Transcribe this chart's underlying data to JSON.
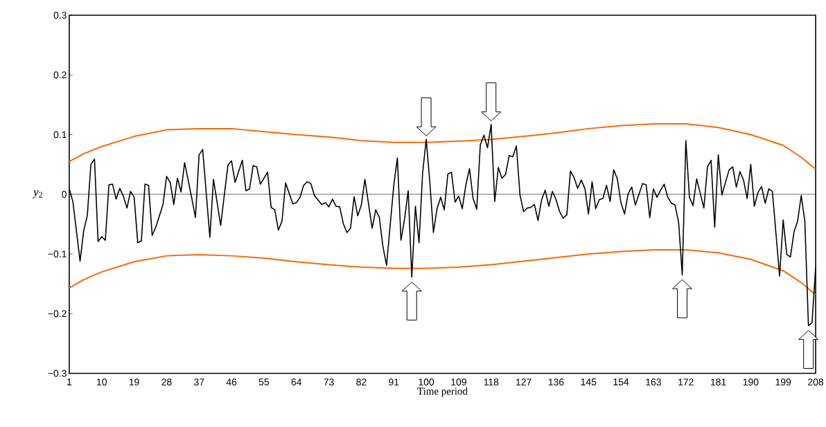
{
  "chart_data": {
    "type": "line",
    "xlabel": "Time period",
    "ylabel": "*y*$_{2}$",
    "xlim": [
      1,
      208
    ],
    "xticks": [
      1,
      10,
      19,
      28,
      37,
      46,
      55,
      64,
      73,
      82,
      91,
      100,
      109,
      118,
      127,
      136,
      145,
      154,
      163,
      172,
      181,
      190,
      199,
      208
    ],
    "ylim": [
      -0.3,
      0.3
    ],
    "yticks": [
      {
        "value": -0.3,
        "label": "−0.3"
      },
      {
        "value": -0.2,
        "label": "−0.2"
      },
      {
        "value": -0.1,
        "label": "−0.1"
      },
      0,
      0.1,
      0.2,
      0.3
    ],
    "ref_lines": [
      {
        "axis": "y",
        "value": 0,
        "color": "#000000"
      }
    ],
    "series": [
      {
        "color": "#000000",
        "x": [
          1,
          2,
          4,
          5,
          6,
          7,
          8,
          9,
          10,
          11,
          12,
          13,
          14,
          15,
          16,
          17,
          18,
          19,
          20,
          21,
          22,
          23,
          24,
          25,
          27,
          28,
          29,
          30,
          31,
          32,
          33,
          35,
          36,
          37,
          38,
          40,
          41,
          43,
          45,
          46,
          47,
          49,
          50,
          51,
          52,
          53,
          54,
          56,
          57,
          58,
          59,
          60,
          61,
          63,
          64,
          65,
          66,
          67,
          68,
          69,
          71,
          72,
          73,
          74,
          75,
          76,
          77,
          78,
          79,
          80,
          81,
          82,
          83,
          85,
          86,
          87,
          88,
          89,
          91,
          92,
          93,
          94,
          95,
          96,
          97,
          98,
          99,
          100,
          101,
          102,
          103,
          104,
          105,
          106,
          107,
          108,
          109,
          110,
          111,
          112,
          113,
          114,
          115,
          116,
          117,
          118,
          119,
          120,
          121,
          122,
          123,
          124,
          125,
          126,
          127,
          128,
          129,
          130,
          131,
          132,
          133,
          134,
          135,
          136,
          137,
          138,
          139,
          140,
          141,
          142,
          143,
          144,
          145,
          146,
          147,
          148,
          149,
          150,
          151,
          152,
          153,
          154,
          155,
          156,
          157,
          158,
          160,
          161,
          162,
          163,
          164,
          165,
          166,
          167,
          168,
          169,
          170,
          171,
          172,
          173,
          174,
          175,
          177,
          178,
          179,
          180,
          181,
          182,
          184,
          185,
          186,
          187,
          188,
          189,
          190,
          191,
          192,
          193,
          194,
          195,
          196,
          198,
          199,
          200,
          201,
          202,
          203,
          204,
          205,
          206,
          207,
          208
        ],
        "values": [
          0.009,
          -0.012,
          -0.112,
          -0.061,
          -0.036,
          0.05,
          0.059,
          -0.079,
          -0.071,
          -0.077,
          0.016,
          0.017,
          -0.008,
          0.01,
          -0.003,
          -0.023,
          0.005,
          -0.005,
          -0.081,
          -0.078,
          0.017,
          0.015,
          -0.069,
          -0.055,
          -0.017,
          0.03,
          0.02,
          -0.017,
          0.027,
          0.004,
          0.053,
          -0.007,
          -0.039,
          0.066,
          0.075,
          -0.072,
          0.025,
          -0.052,
          0.049,
          0.056,
          0.02,
          0.057,
          0.006,
          0.009,
          0.048,
          0.046,
          0.017,
          0.037,
          -0.022,
          -0.026,
          -0.06,
          -0.045,
          0.019,
          -0.016,
          -0.014,
          -0.005,
          0.015,
          0.021,
          0.018,
          -0.002,
          -0.017,
          -0.014,
          -0.021,
          -0.008,
          -0.02,
          -0.021,
          -0.049,
          -0.064,
          -0.057,
          -0.004,
          -0.036,
          -0.018,
          0.025,
          -0.057,
          -0.026,
          -0.039,
          -0.088,
          -0.119,
          0.015,
          0.061,
          -0.077,
          -0.041,
          0.006,
          -0.139,
          -0.02,
          -0.081,
          0.036,
          0.092,
          0.02,
          -0.064,
          -0.024,
          -0.005,
          -0.026,
          0.034,
          0.037,
          -0.013,
          -0.003,
          -0.024,
          0.016,
          0.043,
          -0.007,
          -0.025,
          0.083,
          0.099,
          0.078,
          0.117,
          -0.012,
          0.045,
          0.027,
          0.033,
          0.065,
          0.063,
          0.081,
          -0.001,
          -0.029,
          -0.023,
          -0.022,
          -0.017,
          -0.044,
          -0.009,
          0.007,
          -0.02,
          0.005,
          -0.009,
          -0.029,
          -0.04,
          -0.034,
          0.039,
          0.028,
          0.01,
          0.024,
          0.01,
          -0.033,
          0.021,
          -0.024,
          -0.009,
          -0.007,
          0.015,
          -0.012,
          0.041,
          0.026,
          -0.014,
          -0.033,
          0.001,
          0.012,
          -0.018,
          0.018,
          0.016,
          -0.039,
          0.009,
          -0.005,
          0.007,
          0.017,
          -0.005,
          -0.015,
          -0.018,
          -0.047,
          -0.135,
          0.09,
          -0.005,
          -0.019,
          0.026,
          -0.023,
          0.046,
          0.057,
          -0.055,
          0.066,
          -0.001,
          0.041,
          0.046,
          0.012,
          0.038,
          0.024,
          -0.007,
          0.05,
          -0.02,
          0.003,
          0.013,
          -0.015,
          0.009,
          0.005,
          -0.137,
          -0.043,
          -0.101,
          -0.105,
          -0.063,
          -0.045,
          -0.002,
          -0.045,
          -0.22,
          -0.215,
          -0.123
        ]
      },
      {
        "color": "#ff6600",
        "x": [
          1,
          5,
          10,
          19,
          28,
          37,
          46,
          55,
          64,
          73,
          82,
          91,
          100,
          109,
          118,
          127,
          136,
          145,
          154,
          163,
          172,
          181,
          190,
          199,
          204,
          208
        ],
        "values": [
          0.055,
          0.068,
          0.08,
          0.097,
          0.108,
          0.11,
          0.11,
          0.105,
          0.1,
          0.096,
          0.09,
          0.087,
          0.087,
          0.089,
          0.092,
          0.097,
          0.103,
          0.11,
          0.115,
          0.118,
          0.118,
          0.112,
          0.1,
          0.082,
          0.062,
          0.042
        ]
      },
      {
        "color": "#ff6600",
        "x": [
          1,
          5,
          10,
          19,
          28,
          37,
          46,
          55,
          64,
          73,
          82,
          91,
          100,
          109,
          118,
          127,
          136,
          145,
          154,
          163,
          172,
          181,
          190,
          199,
          204,
          208
        ],
        "values": [
          -0.157,
          -0.143,
          -0.13,
          -0.113,
          -0.103,
          -0.101,
          -0.103,
          -0.107,
          -0.113,
          -0.118,
          -0.122,
          -0.124,
          -0.124,
          -0.122,
          -0.118,
          -0.112,
          -0.106,
          -0.1,
          -0.096,
          -0.093,
          -0.093,
          -0.098,
          -0.109,
          -0.128,
          -0.148,
          -0.168
        ]
      }
    ]
  }
}
